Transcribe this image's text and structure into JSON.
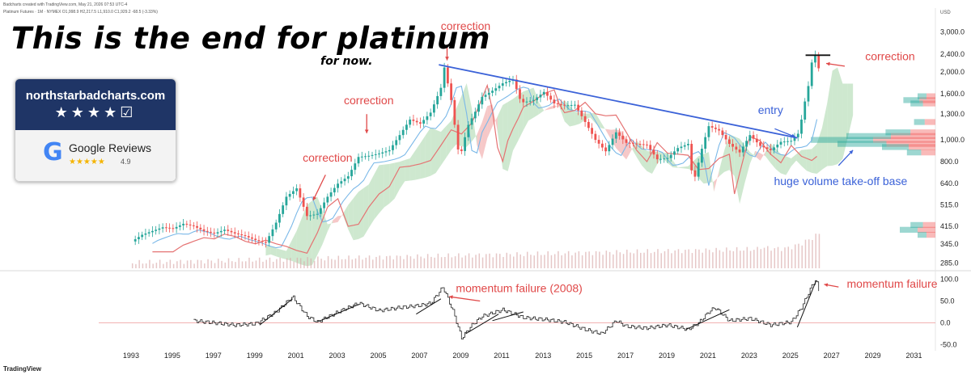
{
  "header": {
    "line1": "Badcharts created with TradingView.com, May 21, 2026 07:53 UTC-4",
    "line2": "Platinum Futures · 1M · NYMEX  O1,998.9  H2,217.5  L1,910.0  C1,929.2  -68.5 (-3.33%)"
  },
  "headline": "This is the end for platinum",
  "subtitle": "for now.",
  "badge": {
    "site": "northstarbadcharts.com",
    "stars": "★★★★☑",
    "google_letter": "G",
    "google_text": "Google Reviews",
    "google_stars": "★★★★★",
    "rating": "4.9"
  },
  "footer": {
    "logo": "TradingView"
  },
  "colors": {
    "up": "#26a69a",
    "down": "#ef5350",
    "trendline": "#3b62d8",
    "annotation_red": "#e04848",
    "annotation_blue": "#3b62d8",
    "cloud_green": "#a5d6a7",
    "cloud_red": "#ef9a9a",
    "volume": "#d9a9a9"
  },
  "chart_data": [
    {
      "type": "line",
      "panel": "price",
      "units": "USD",
      "y_scale": "log",
      "y_axis_label": "USD",
      "y_ticks": [
        285.0,
        345.0,
        415.0,
        515.0,
        640.0,
        800.0,
        1000.0,
        1300.0,
        1600.0,
        2000.0,
        2400.0,
        3000.0
      ],
      "y_tick_labels": [
        "285.0",
        "345.0",
        "415.0",
        "515.0",
        "640.0",
        "800.0",
        "1,000.0",
        "1,300.0",
        "1,600.0",
        "2,000.0",
        "2,400.0",
        "3,000.0"
      ],
      "x_ticks": [
        1993,
        1995,
        1997,
        1999,
        2001,
        2003,
        2005,
        2007,
        2009,
        2011,
        2013,
        2015,
        2017,
        2019,
        2021,
        2023,
        2025,
        2027,
        2029,
        2031
      ],
      "x_range": [
        1991,
        2032
      ],
      "series": [
        {
          "values": [
            [
              1993.0,
              355
            ],
            [
              1993.5,
              380
            ],
            [
              1994.0,
              395
            ],
            [
              1994.5,
              410
            ],
            [
              1995.0,
              405
            ],
            [
              1995.5,
              425
            ],
            [
              1996.0,
              415
            ],
            [
              1996.5,
              395
            ],
            [
              1997.0,
              385
            ],
            [
              1997.5,
              400
            ],
            [
              1998.0,
              385
            ],
            [
              1998.5,
              375
            ],
            [
              1999.0,
              360
            ],
            [
              1999.5,
              350
            ],
            [
              2000.0,
              430
            ],
            [
              2000.5,
              560
            ],
            [
              2001.0,
              610
            ],
            [
              2001.5,
              460
            ],
            [
              2002.0,
              470
            ],
            [
              2002.5,
              560
            ],
            [
              2003.0,
              640
            ],
            [
              2003.5,
              690
            ],
            [
              2004.0,
              840
            ],
            [
              2004.5,
              850
            ],
            [
              2005.0,
              870
            ],
            [
              2005.5,
              900
            ],
            [
              2006.0,
              1050
            ],
            [
              2006.5,
              1230
            ],
            [
              2007.0,
              1180
            ],
            [
              2007.5,
              1320
            ],
            [
              2008.0,
              1700
            ],
            [
              2008.17,
              2100
            ],
            [
              2008.5,
              1500
            ],
            [
              2008.9,
              820
            ],
            [
              2009.3,
              1150
            ],
            [
              2009.7,
              1350
            ],
            [
              2010.0,
              1550
            ],
            [
              2010.5,
              1650
            ],
            [
              2011.0,
              1780
            ],
            [
              2011.5,
              1850
            ],
            [
              2011.9,
              1460
            ],
            [
              2012.5,
              1500
            ],
            [
              2013.0,
              1630
            ],
            [
              2013.5,
              1450
            ],
            [
              2014.0,
              1420
            ],
            [
              2014.5,
              1430
            ],
            [
              2015.0,
              1200
            ],
            [
              2015.5,
              1000
            ],
            [
              2016.0,
              890
            ],
            [
              2016.5,
              1080
            ],
            [
              2017.0,
              970
            ],
            [
              2017.5,
              960
            ],
            [
              2018.0,
              950
            ],
            [
              2018.5,
              820
            ],
            [
              2019.0,
              830
            ],
            [
              2019.5,
              920
            ],
            [
              2020.0,
              960
            ],
            [
              2020.25,
              640
            ],
            [
              2020.7,
              940
            ],
            [
              2021.0,
              1150
            ],
            [
              2021.5,
              1100
            ],
            [
              2022.0,
              960
            ],
            [
              2022.5,
              880
            ],
            [
              2023.0,
              1050
            ],
            [
              2023.5,
              940
            ],
            [
              2024.0,
              900
            ],
            [
              2024.5,
              980
            ],
            [
              2025.0,
              990
            ],
            [
              2025.4,
              1080
            ],
            [
              2025.6,
              1400
            ],
            [
              2025.8,
              1650
            ],
            [
              2026.0,
              2200
            ],
            [
              2026.2,
              2400
            ],
            [
              2026.4,
              1929
            ]
          ]
        }
      ],
      "trendline": [
        [
          2007.9,
          2150
        ],
        [
          2025.3,
          1020
        ]
      ]
    },
    {
      "type": "line",
      "panel": "momentum",
      "y_ticks": [
        -50.0,
        0.0,
        50.0,
        100.0
      ],
      "y_tick_labels": [
        "-50.0",
        "0.0",
        "50.0",
        "100.0"
      ],
      "series": [
        {
          "values": [
            [
              1996.0,
              5
            ],
            [
              1997.0,
              0
            ],
            [
              1998.0,
              -5
            ],
            [
              1999.0,
              -2
            ],
            [
              2000.0,
              25
            ],
            [
              2000.8,
              60
            ],
            [
              2001.5,
              15
            ],
            [
              2002.0,
              2
            ],
            [
              2003.0,
              25
            ],
            [
              2004.0,
              45
            ],
            [
              2005.0,
              28
            ],
            [
              2006.0,
              35
            ],
            [
              2007.0,
              40
            ],
            [
              2007.5,
              45
            ],
            [
              2008.1,
              82
            ],
            [
              2008.6,
              25
            ],
            [
              2009.0,
              -35
            ],
            [
              2009.5,
              -5
            ],
            [
              2010.0,
              15
            ],
            [
              2011.0,
              30
            ],
            [
              2012.0,
              12
            ],
            [
              2013.0,
              8
            ],
            [
              2014.0,
              2
            ],
            [
              2015.0,
              -15
            ],
            [
              2015.8,
              -25
            ],
            [
              2016.5,
              5
            ],
            [
              2017.0,
              -8
            ],
            [
              2018.0,
              -12
            ],
            [
              2019.0,
              -5
            ],
            [
              2020.0,
              -15
            ],
            [
              2020.5,
              0
            ],
            [
              2021.0,
              25
            ],
            [
              2021.3,
              35
            ],
            [
              2022.0,
              5
            ],
            [
              2023.0,
              10
            ],
            [
              2024.0,
              -5
            ],
            [
              2025.0,
              2
            ],
            [
              2025.5,
              35
            ],
            [
              2026.0,
              85
            ],
            [
              2026.2,
              100
            ],
            [
              2026.4,
              60
            ]
          ]
        }
      ]
    }
  ],
  "annotations": [
    {
      "text": "correction",
      "color": "#e04848",
      "year": 2009.2,
      "price": 3070
    },
    {
      "text": "correction",
      "color": "#e04848",
      "year": 2004.5,
      "price": 1440
    },
    {
      "text": "correction",
      "color": "#e04848",
      "year": 2002.5,
      "price": 800
    },
    {
      "text": "correction",
      "color": "#e04848",
      "year": 2029.8,
      "price": 2250
    },
    {
      "text": "entry",
      "color": "#3b62d8",
      "year": 2024.0,
      "price": 1300
    },
    {
      "text": "huge volume take-off base",
      "color": "#3b62d8",
      "year": 2027.4,
      "price": 630
    },
    {
      "text": "momentum failure (2008)",
      "color": "#e04848",
      "year": 2011.8,
      "momentum": 70
    },
    {
      "text": "momentum failure",
      "color": "#e04848",
      "year": 2029.9,
      "momentum": 80
    }
  ]
}
